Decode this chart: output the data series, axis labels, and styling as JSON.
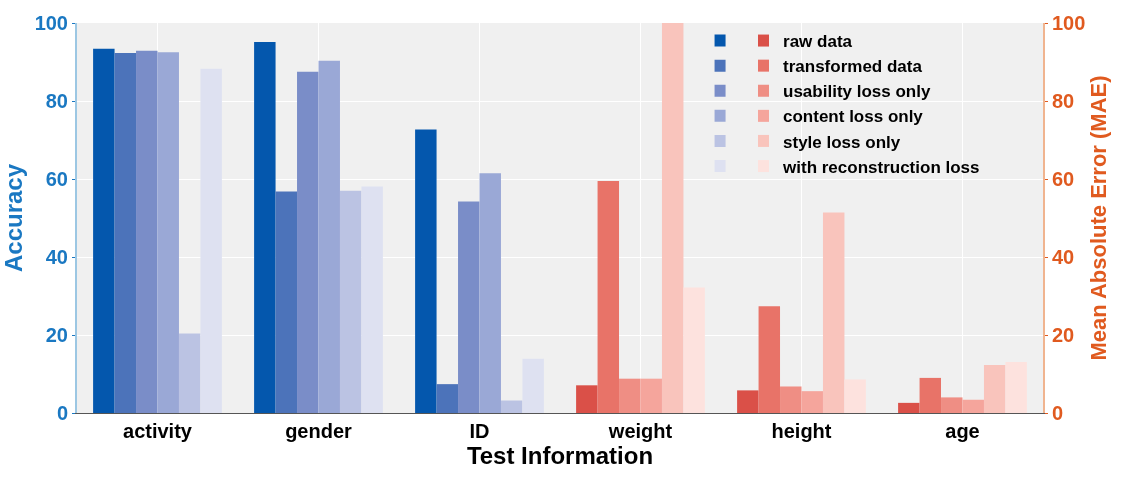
{
  "chart_data": {
    "type": "bar",
    "xlabel": "Test Information",
    "ylabel": "Accuracy",
    "y2label": "Mean Absolute Error (MAE)",
    "categories": [
      "activity",
      "gender",
      "ID",
      "weight",
      "height",
      "age"
    ],
    "series": [
      {
        "color": "#0457ad",
        "axis": "y",
        "values": [
          93.4,
          95.1,
          72.7,
          null,
          null,
          null
        ]
      },
      {
        "color": "#4c73ba",
        "axis": "y",
        "values": [
          92.3,
          56.8,
          7.4,
          null,
          null,
          null
        ]
      },
      {
        "color": "#7a8dc8",
        "axis": "y",
        "values": [
          92.9,
          87.5,
          54.2,
          null,
          null,
          null
        ]
      },
      {
        "color": "#9aa8d6",
        "axis": "y",
        "values": [
          92.5,
          90.3,
          61.5,
          null,
          null,
          null
        ]
      },
      {
        "color": "#bbc3e3",
        "axis": "y",
        "values": [
          20.4,
          57.0,
          3.2,
          null,
          null,
          null
        ]
      },
      {
        "color": "#dee1f1",
        "axis": "y",
        "values": [
          88.3,
          58.1,
          13.9,
          null,
          null,
          null
        ]
      },
      {
        "name": "raw data",
        "color": "#da5048",
        "axis": "y2",
        "values": [
          null,
          null,
          null,
          7.1,
          5.8,
          2.6
        ]
      },
      {
        "name": "transformed data",
        "color": "#e87368",
        "axis": "y2",
        "values": [
          null,
          null,
          null,
          59.5,
          27.4,
          9.0
        ]
      },
      {
        "name": "usability loss only",
        "color": "#ef8e84",
        "axis": "y2",
        "values": [
          null,
          null,
          null,
          8.8,
          6.8,
          4.0
        ]
      },
      {
        "name": "content loss only",
        "color": "#f5a59c",
        "axis": "y2",
        "values": [
          null,
          null,
          null,
          8.8,
          5.6,
          3.4
        ]
      },
      {
        "name": "style loss only",
        "color": "#f9c4bc",
        "axis": "y2",
        "values": [
          null,
          null,
          null,
          100,
          51.4,
          12.3
        ]
      },
      {
        "name": "with reconstruction loss",
        "color": "#fde2de",
        "axis": "y2",
        "values": [
          null,
          null,
          null,
          32.2,
          8.6,
          13.1
        ]
      }
    ],
    "ylim": [
      0,
      100
    ],
    "yticks": [
      0,
      20,
      40,
      60,
      80,
      100
    ],
    "y2lim": [
      0,
      100
    ],
    "y2ticks": [
      0,
      20,
      40,
      60,
      80,
      100
    ],
    "grid": true,
    "legend": "top right"
  }
}
